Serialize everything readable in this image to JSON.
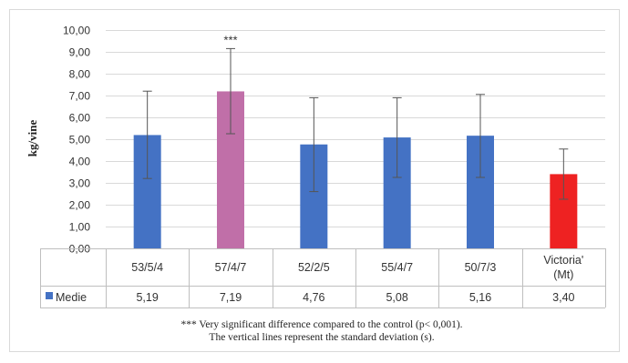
{
  "chart_data": {
    "type": "bar",
    "ylabel": "kg/vine",
    "ylim": [
      0,
      10
    ],
    "ytick_step": 1,
    "ytick_labels": [
      "0,00",
      "1,00",
      "2,00",
      "3,00",
      "4,00",
      "5,00",
      "6,00",
      "7,00",
      "8,00",
      "9,00",
      "10,00"
    ],
    "grid": true,
    "categories": [
      {
        "line1": "53/5/4",
        "line2": ""
      },
      {
        "line1": "57/4/7",
        "line2": ""
      },
      {
        "line1": "52/2/5",
        "line2": ""
      },
      {
        "line1": "55/4/7",
        "line2": ""
      },
      {
        "line1": "50/7/3",
        "line2": ""
      },
      {
        "line1": "Victoria'",
        "line2": "(Mt)"
      }
    ],
    "series": [
      {
        "name": "Medie",
        "values": [
          5.19,
          7.19,
          4.76,
          5.08,
          5.16,
          3.4
        ],
        "value_labels": [
          "5,19",
          "7,19",
          "4,76",
          "5,08",
          "5,16",
          "3,40"
        ],
        "error_low": [
          3.2,
          5.25,
          2.6,
          3.25,
          3.25,
          2.25
        ],
        "error_high": [
          7.2,
          9.15,
          6.9,
          6.9,
          7.05,
          4.55
        ],
        "colors": [
          "#4472c4",
          "#c06fa8",
          "#4472c4",
          "#4472c4",
          "#4472c4",
          "#ee2222"
        ],
        "legend_color": "#4472c4"
      }
    ],
    "annotations": [
      {
        "category_index": 1,
        "text": "***"
      }
    ],
    "notes": [
      "*** Very significant difference compared to the control (p< 0,001).",
      "The vertical lines represent the standard deviation (s)."
    ]
  }
}
